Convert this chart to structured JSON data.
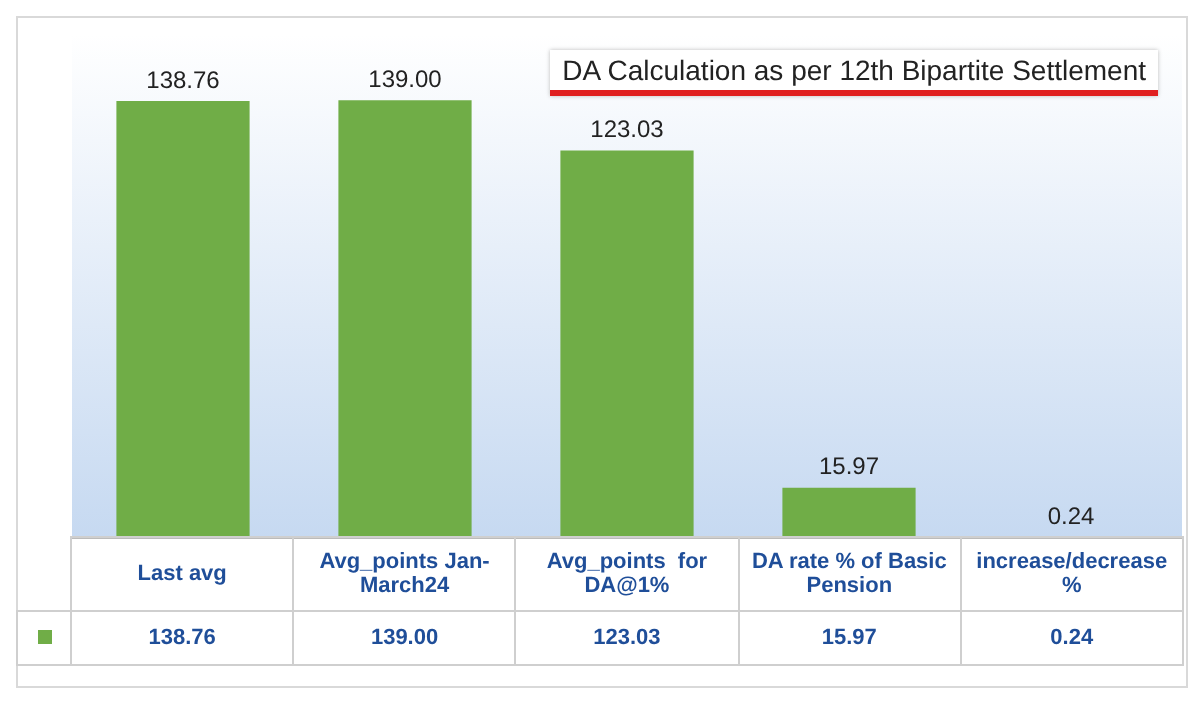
{
  "chart_data": {
    "type": "bar",
    "title": "DA Calculation as per 12th Bipartite Settlement",
    "categories": [
      "Last avg",
      "Avg_points Jan-March24",
      "Avg_points  for DA@1%",
      "DA rate % of Basic Pension",
      "increase/decrease %"
    ],
    "values": [
      138.76,
      139.0,
      123.03,
      15.97,
      0.24
    ],
    "value_labels": [
      "138.76",
      "139.00",
      "123.03",
      "15.97",
      "0.24"
    ],
    "color": "#70ad47",
    "grid": false,
    "legend": false
  }
}
